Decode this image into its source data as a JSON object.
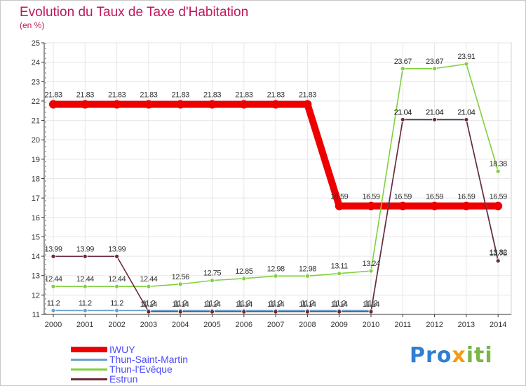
{
  "header": {
    "title": "Evolution du Taux de Taxe d'Habitation",
    "unit": "(en %)"
  },
  "logo": {
    "part1": "Pro",
    "part2": "x",
    "part3": "iti"
  },
  "chart_data": {
    "type": "line",
    "title": "Evolution du Taux de Taxe d'Habitation",
    "ylabel": "(en %)",
    "xlabel": "",
    "ylim": [
      11,
      25
    ],
    "yticks": [
      11,
      12,
      13,
      14,
      15,
      16,
      17,
      18,
      19,
      20,
      21,
      22,
      23,
      24,
      25
    ],
    "grid": true,
    "legend_position": "bottom-left",
    "x": [
      "2000",
      "2001",
      "2002",
      "2003",
      "2004",
      "2005",
      "2006",
      "2007",
      "2008",
      "2009",
      "2010",
      "2011",
      "2012",
      "2013",
      "2014"
    ],
    "series": [
      {
        "name": "IWUY",
        "color": "#ee0000",
        "values": [
          21.83,
          21.83,
          21.83,
          21.83,
          21.83,
          21.83,
          21.83,
          21.83,
          21.83,
          16.59,
          16.59,
          16.59,
          16.59,
          16.59,
          16.59
        ],
        "labels": [
          "21.83",
          "21.83",
          "21.83",
          "21.83",
          "21.83",
          "21.83",
          "21.83",
          "21.83",
          "21.83",
          "16.59",
          "16.59",
          "16.59",
          "16.59",
          "16.59",
          "16.59"
        ]
      },
      {
        "name": "Thun-Saint-Martin",
        "color": "#6aa0cc",
        "values": [
          11.2,
          11.2,
          11.2,
          11.2,
          11.2,
          11.2,
          11.2,
          11.2,
          11.2,
          11.2,
          11.2,
          21.04,
          21.04,
          21.04,
          13.82
        ],
        "labels": [
          "11.2",
          "11.2",
          "11.2",
          "11.2",
          "11.2",
          "11.2",
          "11.2",
          "11.2",
          "11.2",
          "11.2",
          "11.2",
          "21.04",
          "21.04",
          "21.04",
          "13.82"
        ]
      },
      {
        "name": "Thun-l'Evêque",
        "color": "#80d040",
        "values": [
          12.44,
          12.44,
          12.44,
          12.44,
          12.56,
          12.75,
          12.85,
          12.98,
          12.98,
          13.11,
          13.24,
          23.67,
          23.67,
          23.91,
          18.38
        ],
        "labels": [
          "12.44",
          "12.44",
          "12.44",
          "12.44",
          "12.56",
          "12.75",
          "12.85",
          "12.98",
          "12.98",
          "13.11",
          "13.24",
          "23.67",
          "23.67",
          "23.91",
          "18.38"
        ]
      },
      {
        "name": "Estrun",
        "color": "#6b2a3a",
        "values": [
          13.99,
          13.99,
          13.99,
          11.14,
          11.14,
          11.14,
          11.14,
          11.14,
          11.14,
          11.14,
          11.14,
          21.04,
          21.04,
          21.04,
          13.76
        ],
        "labels": [
          "13.99",
          "13.99",
          "13.99",
          "11.14",
          "11.14",
          "11.14",
          "11.14",
          "11.14",
          "11.14",
          "11.14",
          "11.14",
          "21.04",
          "21.04",
          "21.04",
          "13.76"
        ]
      }
    ]
  }
}
